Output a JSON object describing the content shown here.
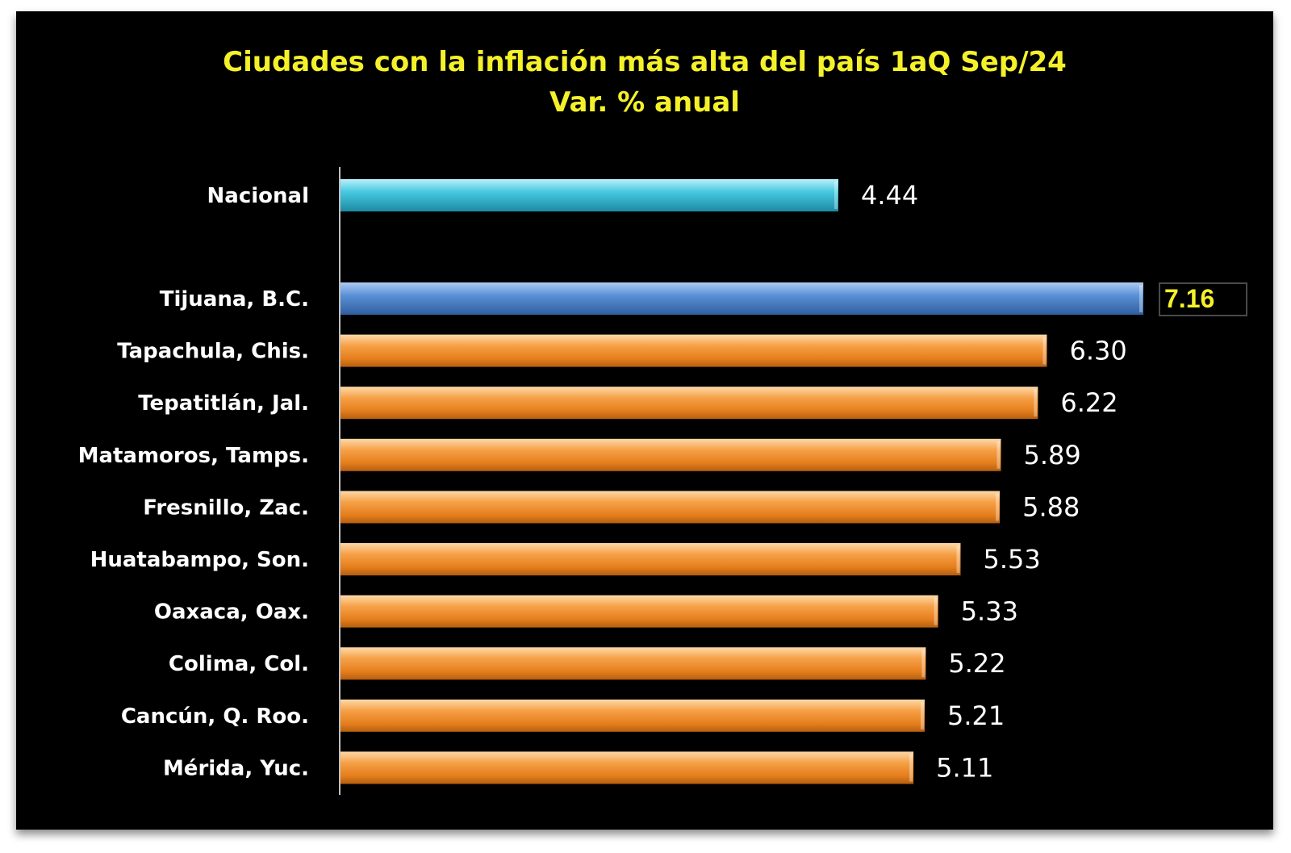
{
  "chart_data": {
    "type": "bar",
    "orientation": "horizontal",
    "title": "Ciudades con la inflación más alta del país 1aQ Sep/24",
    "subtitle": "Var. % anual",
    "categories": [
      "Nacional",
      "Tijuana, B.C.",
      "Tapachula, Chis.",
      "Tepatitlán, Jal.",
      "Matamoros, Tamps.",
      "Fresnillo, Zac.",
      "Huatabampo, Son.",
      "Oaxaca, Oax.",
      "Colima, Col.",
      "Cancún, Q. Roo.",
      "Mérida, Yuc."
    ],
    "values": [
      4.44,
      7.16,
      6.3,
      6.22,
      5.89,
      5.88,
      5.53,
      5.33,
      5.22,
      5.21,
      5.11
    ],
    "value_labels": [
      "4.44",
      "7.16",
      "6.30",
      "6.22",
      "5.89",
      "5.88",
      "5.53",
      "5.33",
      "5.22",
      "5.21",
      "5.11"
    ],
    "xlim": [
      0,
      7.16
    ],
    "highlighted_category": "Tijuana, B.C.",
    "colors": {
      "nacional": "#3fc4dc",
      "highlight": "#4f86cf",
      "default": "#f4932e",
      "background": "#000000",
      "title": "#f4f12a",
      "highlight_label": "#f4f12a"
    },
    "grid": false,
    "legend": "none"
  }
}
